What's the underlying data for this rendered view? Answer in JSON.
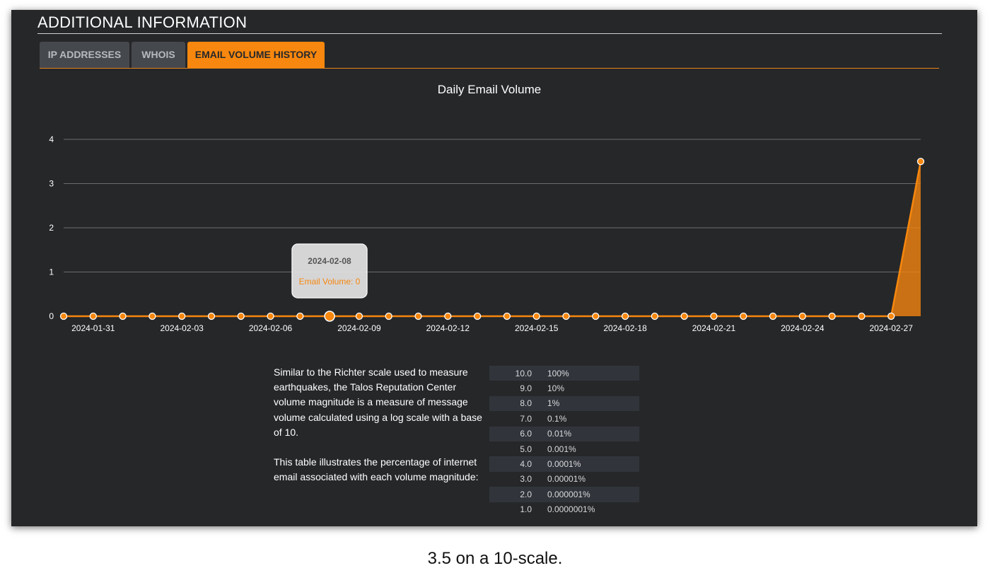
{
  "section": {
    "title": "ADDITIONAL INFORMATION"
  },
  "tabs": [
    {
      "label": "IP ADDRESSES",
      "active": false
    },
    {
      "label": "WHOIS",
      "active": false
    },
    {
      "label": "EMAIL VOLUME HISTORY",
      "active": true
    }
  ],
  "chart_data": {
    "type": "area",
    "title": "Daily Email Volume",
    "xlabel": "",
    "ylabel": "",
    "ylim": [
      0,
      4
    ],
    "yticks": [
      "0",
      "1",
      "2",
      "3",
      "4"
    ],
    "x": [
      "2024-01-30",
      "2024-01-31",
      "2024-02-01",
      "2024-02-02",
      "2024-02-03",
      "2024-02-04",
      "2024-02-05",
      "2024-02-06",
      "2024-02-07",
      "2024-02-08",
      "2024-02-09",
      "2024-02-10",
      "2024-02-11",
      "2024-02-12",
      "2024-02-13",
      "2024-02-14",
      "2024-02-15",
      "2024-02-16",
      "2024-02-17",
      "2024-02-18",
      "2024-02-19",
      "2024-02-20",
      "2024-02-21",
      "2024-02-22",
      "2024-02-23",
      "2024-02-24",
      "2024-02-25",
      "2024-02-26",
      "2024-02-27",
      "2024-02-28"
    ],
    "xtick_labels": [
      "2024-01-31",
      "2024-02-03",
      "2024-02-06",
      "2024-02-09",
      "2024-02-12",
      "2024-02-15",
      "2024-02-18",
      "2024-02-21",
      "2024-02-24",
      "2024-02-27"
    ],
    "series": [
      {
        "name": "Email Volume",
        "color": "#f7870e",
        "values": [
          0,
          0,
          0,
          0,
          0,
          0,
          0,
          0,
          0,
          0,
          0,
          0,
          0,
          0,
          0,
          0,
          0,
          0,
          0,
          0,
          0,
          0,
          0,
          0,
          0,
          0,
          0,
          0,
          0,
          3.5
        ]
      }
    ],
    "grid": true,
    "tooltip": {
      "date": "2024-02-08",
      "label": "Email Volume: 0",
      "index": 9
    }
  },
  "explanation": {
    "paragraph1": "Similar to the Richter scale used to measure earthquakes, the Talos Reputation Center volume magnitude is a measure of message volume calculated using a log scale with a base of 10.",
    "paragraph2": "This table illustrates the percentage of internet email associated with each volume magnitude:"
  },
  "magnitude_table": [
    {
      "magnitude": "10.0",
      "percent": "100%"
    },
    {
      "magnitude": "9.0",
      "percent": "10%"
    },
    {
      "magnitude": "8.0",
      "percent": "1%"
    },
    {
      "magnitude": "7.0",
      "percent": "0.1%"
    },
    {
      "magnitude": "6.0",
      "percent": "0.01%"
    },
    {
      "magnitude": "5.0",
      "percent": "0.001%"
    },
    {
      "magnitude": "4.0",
      "percent": "0.0001%"
    },
    {
      "magnitude": "3.0",
      "percent": "0.00001%"
    },
    {
      "magnitude": "2.0",
      "percent": "0.000001%"
    },
    {
      "magnitude": "1.0",
      "percent": "0.0000001%"
    }
  ],
  "caption": "3.5 on a 10-scale.",
  "colors": {
    "accent": "#f7870e",
    "panel_background": "#262729",
    "tab_inactive": "#45484d"
  }
}
